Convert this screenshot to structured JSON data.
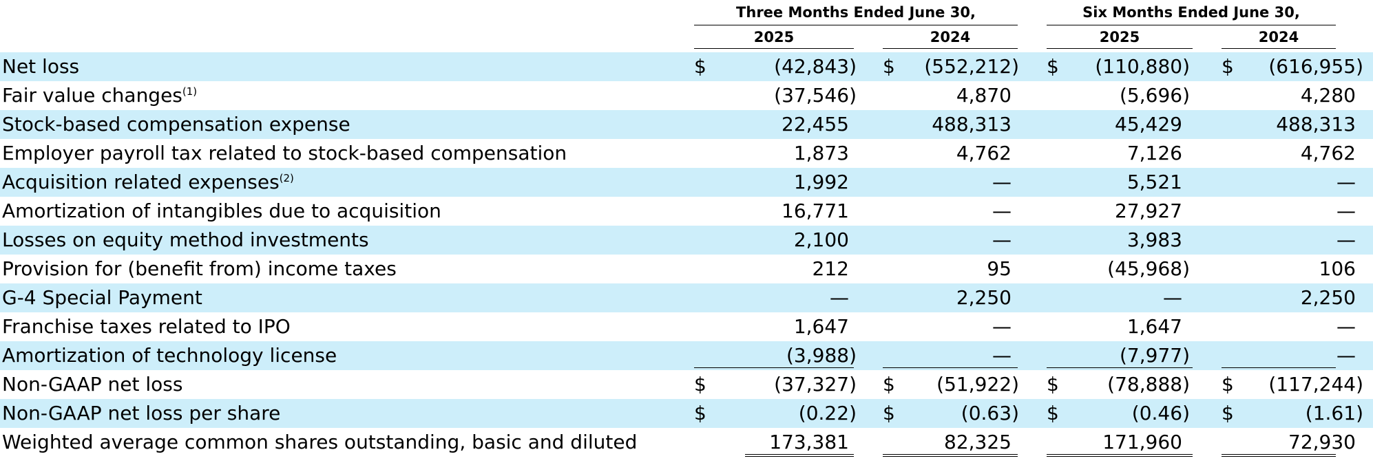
{
  "header": {
    "three_months": "Three Months Ended June 30,",
    "six_months": "Six Months Ended June 30,",
    "years": [
      "2025",
      "2024",
      "2025",
      "2024"
    ]
  },
  "rows": [
    {
      "label": "Net loss",
      "sup": "",
      "dollar": true,
      "values": [
        "(42,843)",
        "(552,212)",
        "(110,880)",
        "(616,955)"
      ],
      "shade": true
    },
    {
      "label": "Fair value changes",
      "sup": "(1)",
      "dollar": false,
      "values": [
        "(37,546)",
        "4,870",
        "(5,696)",
        "4,280"
      ],
      "shade": false
    },
    {
      "label": "Stock-based compensation expense",
      "sup": "",
      "dollar": false,
      "values": [
        "22,455",
        "488,313",
        "45,429",
        "488,313"
      ],
      "shade": true
    },
    {
      "label": "Employer payroll tax related to stock-based compensation",
      "sup": "",
      "dollar": false,
      "values": [
        "1,873",
        "4,762",
        "7,126",
        "4,762"
      ],
      "shade": false
    },
    {
      "label": "Acquisition related expenses",
      "sup": "(2)",
      "dollar": false,
      "values": [
        "1,992",
        "—",
        "5,521",
        "—"
      ],
      "shade": true
    },
    {
      "label": "Amortization of intangibles due to acquisition",
      "sup": "",
      "dollar": false,
      "values": [
        "16,771",
        "—",
        "27,927",
        "—"
      ],
      "shade": false
    },
    {
      "label": "Losses on equity method investments",
      "sup": "",
      "dollar": false,
      "values": [
        "2,100",
        "—",
        "3,983",
        "—"
      ],
      "shade": true
    },
    {
      "label": "Provision for (benefit from) income taxes",
      "sup": "",
      "dollar": false,
      "values": [
        "212",
        "95",
        "(45,968)",
        "106"
      ],
      "shade": false
    },
    {
      "label": "G-4 Special Payment",
      "sup": "",
      "dollar": false,
      "values": [
        "—",
        "2,250",
        "—",
        "2,250"
      ],
      "shade": true
    },
    {
      "label": "Franchise taxes related to IPO",
      "sup": "",
      "dollar": false,
      "values": [
        "1,647",
        "—",
        "1,647",
        "—"
      ],
      "shade": false
    },
    {
      "label": "Amortization of technology license",
      "sup": "",
      "dollar": false,
      "values": [
        "(3,988)",
        "—",
        "(7,977)",
        "—"
      ],
      "shade": true
    },
    {
      "label": "Non-GAAP net loss",
      "sup": "",
      "dollar": true,
      "values": [
        "(37,327)",
        "(51,922)",
        "(78,888)",
        "(117,244)"
      ],
      "shade": false
    },
    {
      "label": "Non-GAAP net loss per share",
      "sup": "",
      "dollar": true,
      "values": [
        "(0.22)",
        "(0.63)",
        "(0.46)",
        "(1.61)"
      ],
      "shade": true
    },
    {
      "label": "Weighted average common shares outstanding, basic and diluted",
      "sup": "",
      "dollar": false,
      "values": [
        "173,381",
        "82,325",
        "171,960",
        "72,930"
      ],
      "shade": false
    }
  ],
  "currency_symbol": "$",
  "colors": {
    "shade": "#cdeefa"
  }
}
